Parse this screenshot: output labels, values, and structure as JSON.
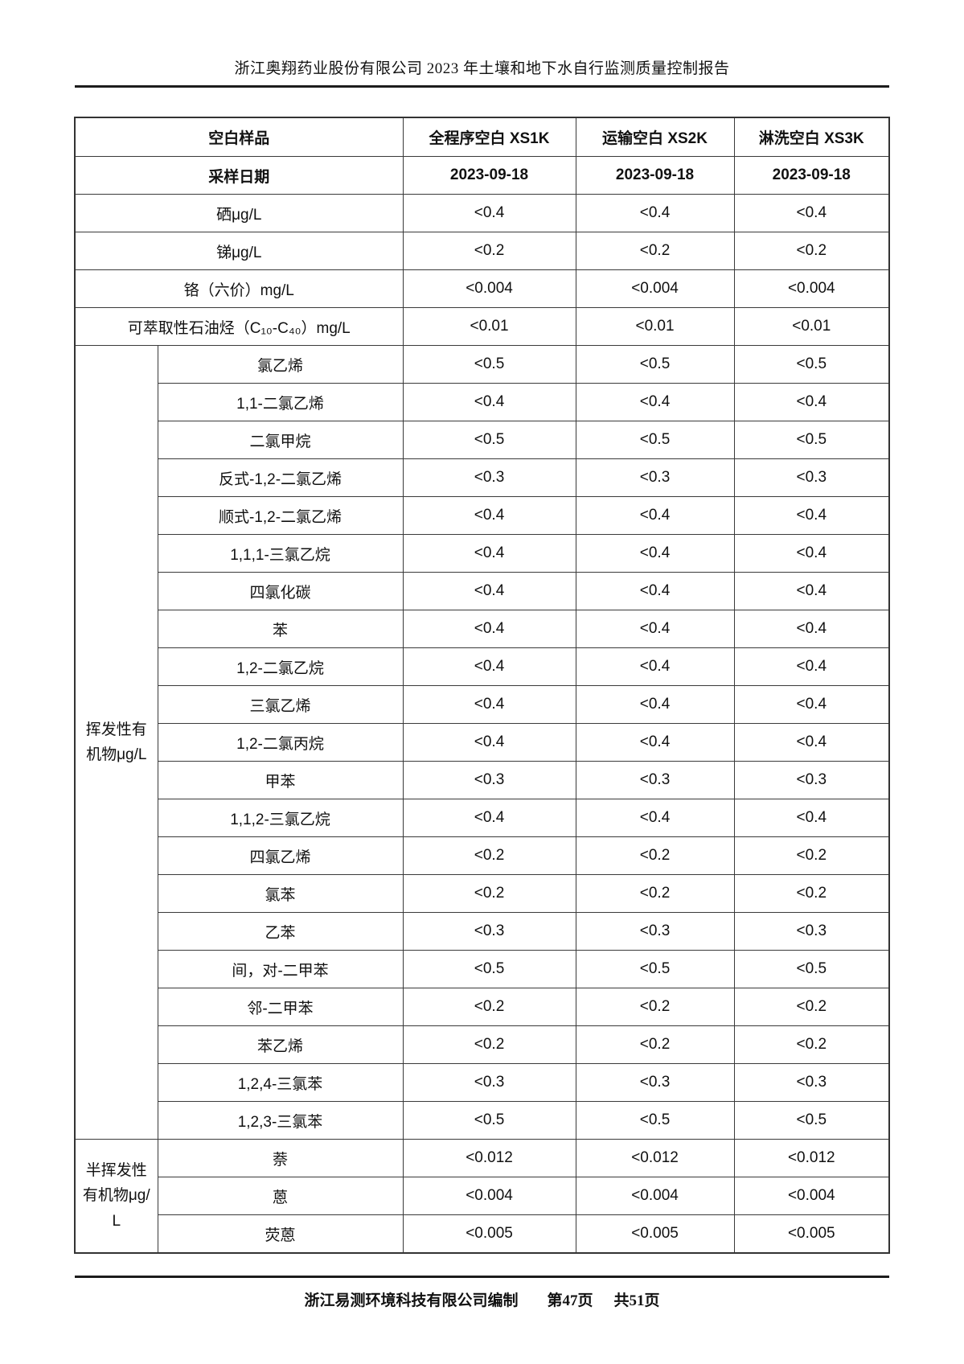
{
  "page_header": {
    "title": "浙江奥翔药业股份有限公司 2023 年土壤和地下水自行监测质量控制报告"
  },
  "table": {
    "header": {
      "label": "空白样品",
      "cols": [
        "全程序空白 XS1K",
        "运输空白 XS2K",
        "淋洗空白 XS3K"
      ]
    },
    "date_row": {
      "label": "采样日期",
      "values": [
        "2023-09-18",
        "2023-09-18",
        "2023-09-18"
      ]
    },
    "simple_rows": [
      {
        "label": "硒μg/L",
        "values": [
          "<0.4",
          "<0.4",
          "<0.4"
        ]
      },
      {
        "label": "锑μg/L",
        "values": [
          "<0.2",
          "<0.2",
          "<0.2"
        ]
      },
      {
        "label": "铬（六价）mg/L",
        "values": [
          "<0.004",
          "<0.004",
          "<0.004"
        ]
      },
      {
        "label": "可萃取性石油烃（C₁₀-C₄₀）mg/L",
        "values": [
          "<0.01",
          "<0.01",
          "<0.01"
        ]
      }
    ],
    "groups": [
      {
        "label": "挥发性有机物μg/L",
        "rows": [
          {
            "name": "氯乙烯",
            "values": [
              "<0.5",
              "<0.5",
              "<0.5"
            ]
          },
          {
            "name": "1,1-二氯乙烯",
            "values": [
              "<0.4",
              "<0.4",
              "<0.4"
            ]
          },
          {
            "name": "二氯甲烷",
            "values": [
              "<0.5",
              "<0.5",
              "<0.5"
            ]
          },
          {
            "name": "反式-1,2-二氯乙烯",
            "values": [
              "<0.3",
              "<0.3",
              "<0.3"
            ]
          },
          {
            "name": "顺式-1,2-二氯乙烯",
            "values": [
              "<0.4",
              "<0.4",
              "<0.4"
            ]
          },
          {
            "name": "1,1,1-三氯乙烷",
            "values": [
              "<0.4",
              "<0.4",
              "<0.4"
            ]
          },
          {
            "name": "四氯化碳",
            "values": [
              "<0.4",
              "<0.4",
              "<0.4"
            ]
          },
          {
            "name": "苯",
            "values": [
              "<0.4",
              "<0.4",
              "<0.4"
            ]
          },
          {
            "name": "1,2-二氯乙烷",
            "values": [
              "<0.4",
              "<0.4",
              "<0.4"
            ]
          },
          {
            "name": "三氯乙烯",
            "values": [
              "<0.4",
              "<0.4",
              "<0.4"
            ]
          },
          {
            "name": "1,2-二氯丙烷",
            "values": [
              "<0.4",
              "<0.4",
              "<0.4"
            ]
          },
          {
            "name": "甲苯",
            "values": [
              "<0.3",
              "<0.3",
              "<0.3"
            ]
          },
          {
            "name": "1,1,2-三氯乙烷",
            "values": [
              "<0.4",
              "<0.4",
              "<0.4"
            ]
          },
          {
            "name": "四氯乙烯",
            "values": [
              "<0.2",
              "<0.2",
              "<0.2"
            ]
          },
          {
            "name": "氯苯",
            "values": [
              "<0.2",
              "<0.2",
              "<0.2"
            ]
          },
          {
            "name": "乙苯",
            "values": [
              "<0.3",
              "<0.3",
              "<0.3"
            ]
          },
          {
            "name": "间，对-二甲苯",
            "values": [
              "<0.5",
              "<0.5",
              "<0.5"
            ]
          },
          {
            "name": "邻-二甲苯",
            "values": [
              "<0.2",
              "<0.2",
              "<0.2"
            ]
          },
          {
            "name": "苯乙烯",
            "values": [
              "<0.2",
              "<0.2",
              "<0.2"
            ]
          },
          {
            "name": "1,2,4-三氯苯",
            "values": [
              "<0.3",
              "<0.3",
              "<0.3"
            ]
          },
          {
            "name": "1,2,3-三氯苯",
            "values": [
              "<0.5",
              "<0.5",
              "<0.5"
            ]
          }
        ]
      },
      {
        "label": "半挥发性有机物μg/L",
        "rows": [
          {
            "name": "萘",
            "values": [
              "<0.012",
              "<0.012",
              "<0.012"
            ]
          },
          {
            "name": "蒽",
            "values": [
              "<0.004",
              "<0.004",
              "<0.004"
            ]
          },
          {
            "name": "荧蒽",
            "values": [
              "<0.005",
              "<0.005",
              "<0.005"
            ]
          }
        ]
      }
    ]
  },
  "page_footer": {
    "company": "浙江易测环境科技有限公司编制",
    "page": "第47页",
    "total": "共51页"
  }
}
